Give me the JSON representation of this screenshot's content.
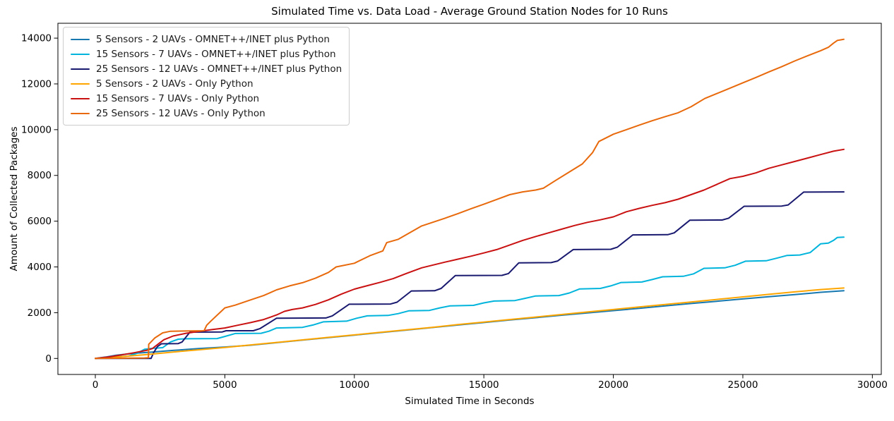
{
  "chart_data": {
    "type": "line",
    "title": "Simulated Time vs. Data Load - Average Ground Station Nodes for 10 Runs",
    "xlabel": "Simulated Time in Seconds",
    "ylabel": "Amount of Collected Packages",
    "xlim": [
      -1445,
      30345
    ],
    "ylim": [
      -700,
      14650
    ],
    "x_ticks": [
      0,
      5000,
      10000,
      15000,
      20000,
      25000,
      30000
    ],
    "y_ticks": [
      0,
      2000,
      4000,
      6000,
      8000,
      10000,
      12000,
      14000
    ],
    "grid": false,
    "legend_position": "upper left",
    "background_color": "#ffffff",
    "axis_color": "#000000",
    "series": [
      {
        "name": "5 Sensors - 2 UAVs - OMNET++/INET plus Python",
        "color": "#1778b0",
        "points": [
          [
            0,
            0
          ],
          [
            400,
            60
          ],
          [
            800,
            140
          ],
          [
            1200,
            190
          ],
          [
            1700,
            240
          ],
          [
            2200,
            280
          ],
          [
            3000,
            350
          ],
          [
            4000,
            430
          ],
          [
            5000,
            500
          ],
          [
            6000,
            580
          ],
          [
            7000,
            690
          ],
          [
            8000,
            800
          ],
          [
            9000,
            910
          ],
          [
            10000,
            1020
          ],
          [
            11000,
            1130
          ],
          [
            12000,
            1240
          ],
          [
            13000,
            1350
          ],
          [
            14000,
            1460
          ],
          [
            15000,
            1570
          ],
          [
            16000,
            1680
          ],
          [
            17000,
            1780
          ],
          [
            18000,
            1890
          ],
          [
            19000,
            1990
          ],
          [
            20000,
            2090
          ],
          [
            21000,
            2190
          ],
          [
            22000,
            2300
          ],
          [
            23000,
            2400
          ],
          [
            24000,
            2500
          ],
          [
            25000,
            2600
          ],
          [
            26000,
            2700
          ],
          [
            27000,
            2790
          ],
          [
            28000,
            2890
          ],
          [
            28900,
            2960
          ]
        ]
      },
      {
        "name": "15 Sensors - 7 UAVs - OMNET++/INET plus Python",
        "color": "#00b4dc",
        "points": [
          [
            0,
            0
          ],
          [
            800,
            60
          ],
          [
            1300,
            110
          ],
          [
            1600,
            220
          ],
          [
            1900,
            400
          ],
          [
            2200,
            440
          ],
          [
            2600,
            470
          ],
          [
            2900,
            720
          ],
          [
            3200,
            840
          ],
          [
            3500,
            860
          ],
          [
            4700,
            870
          ],
          [
            5000,
            960
          ],
          [
            5400,
            1090
          ],
          [
            6400,
            1100
          ],
          [
            6700,
            1190
          ],
          [
            7000,
            1330
          ],
          [
            8000,
            1360
          ],
          [
            8400,
            1460
          ],
          [
            8800,
            1600
          ],
          [
            9700,
            1630
          ],
          [
            10100,
            1760
          ],
          [
            10500,
            1860
          ],
          [
            11300,
            1880
          ],
          [
            11700,
            1960
          ],
          [
            12100,
            2080
          ],
          [
            12900,
            2100
          ],
          [
            13300,
            2210
          ],
          [
            13700,
            2300
          ],
          [
            14600,
            2320
          ],
          [
            15000,
            2430
          ],
          [
            15400,
            2510
          ],
          [
            16200,
            2530
          ],
          [
            16600,
            2630
          ],
          [
            17000,
            2730
          ],
          [
            17900,
            2750
          ],
          [
            18300,
            2860
          ],
          [
            18700,
            3040
          ],
          [
            19500,
            3060
          ],
          [
            19900,
            3170
          ],
          [
            20300,
            3320
          ],
          [
            21100,
            3340
          ],
          [
            21500,
            3450
          ],
          [
            21900,
            3570
          ],
          [
            22700,
            3590
          ],
          [
            23100,
            3700
          ],
          [
            23500,
            3940
          ],
          [
            24300,
            3960
          ],
          [
            24700,
            4070
          ],
          [
            25100,
            4250
          ],
          [
            25900,
            4270
          ],
          [
            26300,
            4380
          ],
          [
            26700,
            4500
          ],
          [
            27200,
            4520
          ],
          [
            27600,
            4630
          ],
          [
            28000,
            5010
          ],
          [
            28300,
            5040
          ],
          [
            28500,
            5160
          ],
          [
            28650,
            5290
          ],
          [
            28900,
            5300
          ]
        ]
      },
      {
        "name": "25 Sensors - 12 UAVs - OMNET++/INET plus Python",
        "color": "#191970",
        "points": [
          [
            0,
            0
          ],
          [
            2150,
            0
          ],
          [
            2250,
            250
          ],
          [
            2400,
            520
          ],
          [
            2550,
            640
          ],
          [
            3200,
            650
          ],
          [
            3350,
            720
          ],
          [
            3650,
            1150
          ],
          [
            4900,
            1160
          ],
          [
            5050,
            1210
          ],
          [
            6100,
            1210
          ],
          [
            6350,
            1300
          ],
          [
            7000,
            1760
          ],
          [
            8900,
            1770
          ],
          [
            9150,
            1860
          ],
          [
            9800,
            2370
          ],
          [
            11400,
            2380
          ],
          [
            11650,
            2460
          ],
          [
            12200,
            2950
          ],
          [
            13100,
            2960
          ],
          [
            13350,
            3060
          ],
          [
            13900,
            3620
          ],
          [
            15700,
            3630
          ],
          [
            15950,
            3710
          ],
          [
            16350,
            4180
          ],
          [
            17600,
            4190
          ],
          [
            17850,
            4260
          ],
          [
            18450,
            4760
          ],
          [
            19900,
            4770
          ],
          [
            20150,
            4860
          ],
          [
            20750,
            5400
          ],
          [
            22100,
            5410
          ],
          [
            22350,
            5490
          ],
          [
            22950,
            6040
          ],
          [
            24200,
            6050
          ],
          [
            24450,
            6130
          ],
          [
            25050,
            6650
          ],
          [
            26500,
            6660
          ],
          [
            26750,
            6710
          ],
          [
            27350,
            7270
          ],
          [
            28900,
            7280
          ]
        ]
      },
      {
        "name": "5 Sensors - 2 UAVs - Only Python",
        "color": "#ffa500",
        "points": [
          [
            0,
            0
          ],
          [
            1000,
            80
          ],
          [
            2000,
            170
          ],
          [
            3000,
            280
          ],
          [
            4000,
            380
          ],
          [
            5000,
            480
          ],
          [
            6000,
            590
          ],
          [
            7000,
            700
          ],
          [
            8000,
            810
          ],
          [
            9000,
            920
          ],
          [
            10000,
            1030
          ],
          [
            11000,
            1140
          ],
          [
            12000,
            1250
          ],
          [
            13000,
            1360
          ],
          [
            14000,
            1480
          ],
          [
            15000,
            1590
          ],
          [
            16000,
            1700
          ],
          [
            17000,
            1810
          ],
          [
            18000,
            1920
          ],
          [
            19000,
            2030
          ],
          [
            20000,
            2140
          ],
          [
            21000,
            2250
          ],
          [
            22000,
            2360
          ],
          [
            23000,
            2470
          ],
          [
            24000,
            2580
          ],
          [
            25000,
            2690
          ],
          [
            26000,
            2800
          ],
          [
            27000,
            2910
          ],
          [
            28000,
            3010
          ],
          [
            28900,
            3080
          ]
        ]
      },
      {
        "name": "15 Sensors - 7 UAVs - Only Python",
        "color": "#c91111",
        "points": [
          [
            0,
            0
          ],
          [
            500,
            60
          ],
          [
            1000,
            150
          ],
          [
            1500,
            250
          ],
          [
            2000,
            360
          ],
          [
            2200,
            430
          ],
          [
            2450,
            650
          ],
          [
            2650,
            820
          ],
          [
            2850,
            910
          ],
          [
            3000,
            980
          ],
          [
            3500,
            1100
          ],
          [
            4000,
            1180
          ],
          [
            4500,
            1260
          ],
          [
            5000,
            1330
          ],
          [
            5500,
            1450
          ],
          [
            6000,
            1570
          ],
          [
            6500,
            1700
          ],
          [
            7000,
            1900
          ],
          [
            7300,
            2060
          ],
          [
            7600,
            2140
          ],
          [
            8000,
            2210
          ],
          [
            8500,
            2360
          ],
          [
            9000,
            2560
          ],
          [
            9500,
            2810
          ],
          [
            10000,
            3030
          ],
          [
            10500,
            3180
          ],
          [
            11000,
            3330
          ],
          [
            11500,
            3490
          ],
          [
            12000,
            3710
          ],
          [
            12600,
            3960
          ],
          [
            13000,
            4070
          ],
          [
            13500,
            4210
          ],
          [
            14000,
            4340
          ],
          [
            14500,
            4470
          ],
          [
            15000,
            4610
          ],
          [
            15500,
            4760
          ],
          [
            16000,
            4960
          ],
          [
            16500,
            5160
          ],
          [
            17000,
            5330
          ],
          [
            17500,
            5490
          ],
          [
            18000,
            5650
          ],
          [
            18500,
            5810
          ],
          [
            19000,
            5950
          ],
          [
            19500,
            6060
          ],
          [
            20000,
            6190
          ],
          [
            20500,
            6410
          ],
          [
            21000,
            6560
          ],
          [
            21500,
            6690
          ],
          [
            22000,
            6810
          ],
          [
            22500,
            6960
          ],
          [
            23000,
            7160
          ],
          [
            23500,
            7360
          ],
          [
            24000,
            7610
          ],
          [
            24500,
            7860
          ],
          [
            25000,
            7960
          ],
          [
            25500,
            8110
          ],
          [
            26000,
            8310
          ],
          [
            26500,
            8460
          ],
          [
            27000,
            8610
          ],
          [
            27500,
            8760
          ],
          [
            28000,
            8910
          ],
          [
            28500,
            9060
          ],
          [
            28900,
            9140
          ]
        ]
      },
      {
        "name": "25 Sensors - 12 UAVs - Only Python",
        "color": "#e8690b",
        "points": [
          [
            0,
            0
          ],
          [
            1900,
            20
          ],
          [
            2050,
            30
          ],
          [
            2060,
            620
          ],
          [
            2300,
            900
          ],
          [
            2600,
            1120
          ],
          [
            2900,
            1190
          ],
          [
            4200,
            1210
          ],
          [
            4300,
            1450
          ],
          [
            4450,
            1620
          ],
          [
            5000,
            2210
          ],
          [
            5400,
            2330
          ],
          [
            6000,
            2560
          ],
          [
            6500,
            2750
          ],
          [
            7000,
            3000
          ],
          [
            7500,
            3170
          ],
          [
            8000,
            3310
          ],
          [
            8500,
            3510
          ],
          [
            9000,
            3760
          ],
          [
            9300,
            4000
          ],
          [
            10000,
            4160
          ],
          [
            10600,
            4490
          ],
          [
            11100,
            4700
          ],
          [
            11250,
            5060
          ],
          [
            11700,
            5210
          ],
          [
            12600,
            5790
          ],
          [
            13000,
            5940
          ],
          [
            13500,
            6130
          ],
          [
            14000,
            6330
          ],
          [
            14500,
            6540
          ],
          [
            15000,
            6740
          ],
          [
            15500,
            6950
          ],
          [
            16000,
            7160
          ],
          [
            16500,
            7280
          ],
          [
            17000,
            7360
          ],
          [
            17300,
            7440
          ],
          [
            17800,
            7800
          ],
          [
            18300,
            8150
          ],
          [
            18800,
            8500
          ],
          [
            19200,
            9000
          ],
          [
            19440,
            9480
          ],
          [
            20000,
            9800
          ],
          [
            20500,
            10000
          ],
          [
            21000,
            10200
          ],
          [
            21500,
            10390
          ],
          [
            22000,
            10570
          ],
          [
            22500,
            10740
          ],
          [
            23000,
            11000
          ],
          [
            23530,
            11360
          ],
          [
            24000,
            11580
          ],
          [
            24500,
            11810
          ],
          [
            25000,
            12050
          ],
          [
            25500,
            12280
          ],
          [
            26000,
            12520
          ],
          [
            26500,
            12750
          ],
          [
            27000,
            13000
          ],
          [
            27500,
            13230
          ],
          [
            28000,
            13450
          ],
          [
            28300,
            13600
          ],
          [
            28500,
            13780
          ],
          [
            28650,
            13900
          ],
          [
            28800,
            13930
          ],
          [
            28900,
            13950
          ]
        ]
      }
    ]
  }
}
